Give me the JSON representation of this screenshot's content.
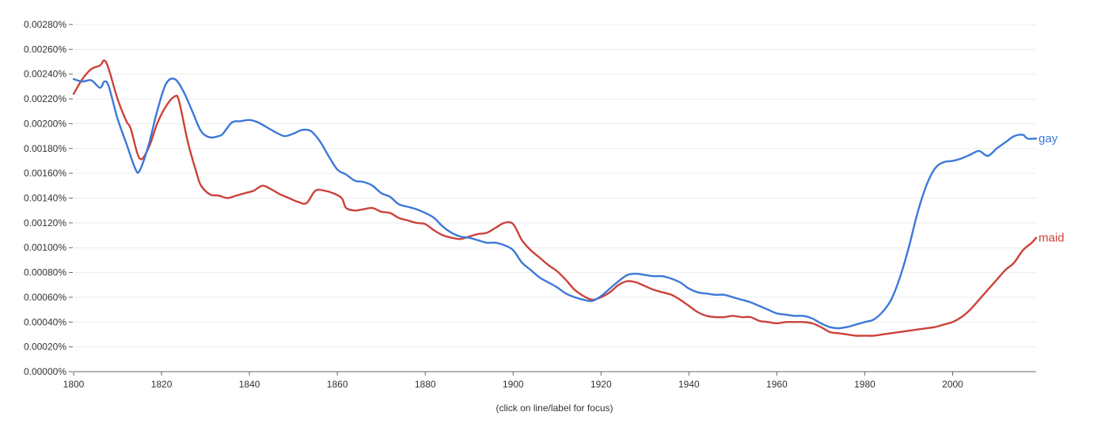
{
  "chart_data": {
    "type": "line",
    "title": "",
    "xlabel": "",
    "ylabel": "",
    "xlim": [
      1800,
      2019
    ],
    "ylim": [
      0,
      0.0028
    ],
    "grid": true,
    "footnote": "(click on line/label for focus)",
    "y_ticks": [
      {
        "value": 0.0,
        "label": "0.00000%"
      },
      {
        "value": 0.0002,
        "label": "0.00020%"
      },
      {
        "value": 0.0004,
        "label": "0.00040%"
      },
      {
        "value": 0.0006,
        "label": "0.00060%"
      },
      {
        "value": 0.0008,
        "label": "0.00080%"
      },
      {
        "value": 0.001,
        "label": "0.00100%"
      },
      {
        "value": 0.0012,
        "label": "0.00120%"
      },
      {
        "value": 0.0014,
        "label": "0.00140%"
      },
      {
        "value": 0.0016,
        "label": "0.00160%"
      },
      {
        "value": 0.0018,
        "label": "0.00180%"
      },
      {
        "value": 0.002,
        "label": "0.00200%"
      },
      {
        "value": 0.0022,
        "label": "0.00220%"
      },
      {
        "value": 0.0024,
        "label": "0.00240%"
      },
      {
        "value": 0.0026,
        "label": "0.00260%"
      },
      {
        "value": 0.0028,
        "label": "0.00280%"
      }
    ],
    "x_ticks": [
      {
        "value": 1800,
        "label": "1800"
      },
      {
        "value": 1820,
        "label": "1820"
      },
      {
        "value": 1840,
        "label": "1840"
      },
      {
        "value": 1860,
        "label": "1860"
      },
      {
        "value": 1880,
        "label": "1880"
      },
      {
        "value": 1900,
        "label": "1900"
      },
      {
        "value": 1920,
        "label": "1920"
      },
      {
        "value": 1940,
        "label": "1940"
      },
      {
        "value": 1960,
        "label": "1960"
      },
      {
        "value": 1980,
        "label": "1980"
      },
      {
        "value": 2000,
        "label": "2000"
      }
    ],
    "series": [
      {
        "name": "gay",
        "color": "#3c78d8",
        "points": [
          [
            1800,
            0.00236
          ],
          [
            1802,
            0.00234
          ],
          [
            1804,
            0.00235
          ],
          [
            1806,
            0.00229
          ],
          [
            1807,
            0.00234
          ],
          [
            1808,
            0.0023
          ],
          [
            1810,
            0.00204
          ],
          [
            1812,
            0.00184
          ],
          [
            1814,
            0.00164
          ],
          [
            1815,
            0.00162
          ],
          [
            1817,
            0.00182
          ],
          [
            1819,
            0.0021
          ],
          [
            1821,
            0.00232
          ],
          [
            1823,
            0.00236
          ],
          [
            1825,
            0.00226
          ],
          [
            1827,
            0.0021
          ],
          [
            1829,
            0.00194
          ],
          [
            1831,
            0.00189
          ],
          [
            1833,
            0.0019
          ],
          [
            1834,
            0.00192
          ],
          [
            1836,
            0.00201
          ],
          [
            1838,
            0.00202
          ],
          [
            1840,
            0.00203
          ],
          [
            1842,
            0.00201
          ],
          [
            1844,
            0.00197
          ],
          [
            1846,
            0.00193
          ],
          [
            1848,
            0.0019
          ],
          [
            1850,
            0.00192
          ],
          [
            1852,
            0.00195
          ],
          [
            1854,
            0.00194
          ],
          [
            1856,
            0.00186
          ],
          [
            1858,
            0.00174
          ],
          [
            1860,
            0.00163
          ],
          [
            1862,
            0.00159
          ],
          [
            1864,
            0.00154
          ],
          [
            1866,
            0.00153
          ],
          [
            1868,
            0.0015
          ],
          [
            1870,
            0.00144
          ],
          [
            1872,
            0.00141
          ],
          [
            1874,
            0.00135
          ],
          [
            1876,
            0.00133
          ],
          [
            1878,
            0.00131
          ],
          [
            1880,
            0.00128
          ],
          [
            1882,
            0.00124
          ],
          [
            1884,
            0.00117
          ],
          [
            1886,
            0.00112
          ],
          [
            1888,
            0.00109
          ],
          [
            1890,
            0.00108
          ],
          [
            1892,
            0.00106
          ],
          [
            1894,
            0.00104
          ],
          [
            1896,
            0.00104
          ],
          [
            1898,
            0.00102
          ],
          [
            1900,
            0.00098
          ],
          [
            1902,
            0.00088
          ],
          [
            1904,
            0.00082
          ],
          [
            1906,
            0.00076
          ],
          [
            1908,
            0.00072
          ],
          [
            1910,
            0.00068
          ],
          [
            1912,
            0.00063
          ],
          [
            1914,
            0.0006
          ],
          [
            1916,
            0.00058
          ],
          [
            1918,
            0.00057
          ],
          [
            1920,
            0.00061
          ],
          [
            1922,
            0.00067
          ],
          [
            1924,
            0.00073
          ],
          [
            1926,
            0.00078
          ],
          [
            1928,
            0.00079
          ],
          [
            1930,
            0.00078
          ],
          [
            1932,
            0.00077
          ],
          [
            1934,
            0.00077
          ],
          [
            1936,
            0.00075
          ],
          [
            1938,
            0.00072
          ],
          [
            1940,
            0.00067
          ],
          [
            1942,
            0.00064
          ],
          [
            1944,
            0.00063
          ],
          [
            1946,
            0.00062
          ],
          [
            1948,
            0.00062
          ],
          [
            1950,
            0.0006
          ],
          [
            1952,
            0.00058
          ],
          [
            1954,
            0.00056
          ],
          [
            1956,
            0.00053
          ],
          [
            1958,
            0.0005
          ],
          [
            1960,
            0.00047
          ],
          [
            1962,
            0.00046
          ],
          [
            1964,
            0.00045
          ],
          [
            1966,
            0.00045
          ],
          [
            1968,
            0.00043
          ],
          [
            1970,
            0.00039
          ],
          [
            1972,
            0.00036
          ],
          [
            1974,
            0.00035
          ],
          [
            1976,
            0.00036
          ],
          [
            1978,
            0.00038
          ],
          [
            1980,
            0.0004
          ],
          [
            1982,
            0.00042
          ],
          [
            1984,
            0.00048
          ],
          [
            1986,
            0.00058
          ],
          [
            1988,
            0.00076
          ],
          [
            1990,
            0.001
          ],
          [
            1992,
            0.00128
          ],
          [
            1994,
            0.0015
          ],
          [
            1996,
            0.00164
          ],
          [
            1998,
            0.00169
          ],
          [
            2000,
            0.0017
          ],
          [
            2002,
            0.00172
          ],
          [
            2004,
            0.00175
          ],
          [
            2006,
            0.00178
          ],
          [
            2008,
            0.00174
          ],
          [
            2010,
            0.0018
          ],
          [
            2012,
            0.00185
          ],
          [
            2014,
            0.0019
          ],
          [
            2016,
            0.00191
          ],
          [
            2017,
            0.00188
          ],
          [
            2019,
            0.00188
          ]
        ]
      },
      {
        "name": "maid",
        "color": "#cc4139",
        "points": [
          [
            1800,
            0.00224
          ],
          [
            1802,
            0.00236
          ],
          [
            1804,
            0.00244
          ],
          [
            1806,
            0.00247
          ],
          [
            1807,
            0.00251
          ],
          [
            1808,
            0.00244
          ],
          [
            1810,
            0.0022
          ],
          [
            1812,
            0.00202
          ],
          [
            1813,
            0.00196
          ],
          [
            1815,
            0.00172
          ],
          [
            1817,
            0.0018
          ],
          [
            1819,
            0.002
          ],
          [
            1821,
            0.00214
          ],
          [
            1823,
            0.00222
          ],
          [
            1824,
            0.00218
          ],
          [
            1826,
            0.00185
          ],
          [
            1828,
            0.0016
          ],
          [
            1829,
            0.0015
          ],
          [
            1831,
            0.00143
          ],
          [
            1833,
            0.00142
          ],
          [
            1835,
            0.0014
          ],
          [
            1837,
            0.00142
          ],
          [
            1839,
            0.00144
          ],
          [
            1841,
            0.00146
          ],
          [
            1843,
            0.0015
          ],
          [
            1845,
            0.00147
          ],
          [
            1847,
            0.00143
          ],
          [
            1849,
            0.0014
          ],
          [
            1851,
            0.00137
          ],
          [
            1853,
            0.00136
          ],
          [
            1855,
            0.00146
          ],
          [
            1857,
            0.00146
          ],
          [
            1859,
            0.00144
          ],
          [
            1861,
            0.0014
          ],
          [
            1862,
            0.00132
          ],
          [
            1864,
            0.0013
          ],
          [
            1866,
            0.00131
          ],
          [
            1868,
            0.00132
          ],
          [
            1870,
            0.00129
          ],
          [
            1872,
            0.00128
          ],
          [
            1874,
            0.00124
          ],
          [
            1876,
            0.00122
          ],
          [
            1878,
            0.0012
          ],
          [
            1880,
            0.00119
          ],
          [
            1882,
            0.00114
          ],
          [
            1884,
            0.0011
          ],
          [
            1886,
            0.00108
          ],
          [
            1888,
            0.00107
          ],
          [
            1890,
            0.00109
          ],
          [
            1892,
            0.00111
          ],
          [
            1894,
            0.00112
          ],
          [
            1896,
            0.00116
          ],
          [
            1898,
            0.0012
          ],
          [
            1900,
            0.00119
          ],
          [
            1902,
            0.00106
          ],
          [
            1904,
            0.00098
          ],
          [
            1906,
            0.00092
          ],
          [
            1908,
            0.00086
          ],
          [
            1910,
            0.00081
          ],
          [
            1912,
            0.00074
          ],
          [
            1914,
            0.00066
          ],
          [
            1916,
            0.00061
          ],
          [
            1918,
            0.00058
          ],
          [
            1920,
            0.0006
          ],
          [
            1922,
            0.00064
          ],
          [
            1924,
            0.0007
          ],
          [
            1926,
            0.00073
          ],
          [
            1928,
            0.00072
          ],
          [
            1930,
            0.00069
          ],
          [
            1932,
            0.00066
          ],
          [
            1934,
            0.00064
          ],
          [
            1936,
            0.00062
          ],
          [
            1938,
            0.00058
          ],
          [
            1940,
            0.00053
          ],
          [
            1942,
            0.00048
          ],
          [
            1944,
            0.00045
          ],
          [
            1946,
            0.00044
          ],
          [
            1948,
            0.00044
          ],
          [
            1950,
            0.00045
          ],
          [
            1952,
            0.00044
          ],
          [
            1954,
            0.00044
          ],
          [
            1956,
            0.00041
          ],
          [
            1958,
            0.0004
          ],
          [
            1960,
            0.00039
          ],
          [
            1962,
            0.0004
          ],
          [
            1964,
            0.0004
          ],
          [
            1966,
            0.0004
          ],
          [
            1968,
            0.00039
          ],
          [
            1970,
            0.00036
          ],
          [
            1972,
            0.00032
          ],
          [
            1974,
            0.00031
          ],
          [
            1976,
            0.0003
          ],
          [
            1978,
            0.00029
          ],
          [
            1980,
            0.00029
          ],
          [
            1982,
            0.00029
          ],
          [
            1984,
            0.0003
          ],
          [
            1986,
            0.00031
          ],
          [
            1988,
            0.00032
          ],
          [
            1990,
            0.00033
          ],
          [
            1992,
            0.00034
          ],
          [
            1994,
            0.00035
          ],
          [
            1996,
            0.00036
          ],
          [
            1998,
            0.00038
          ],
          [
            2000,
            0.0004
          ],
          [
            2002,
            0.00044
          ],
          [
            2004,
            0.0005
          ],
          [
            2006,
            0.00058
          ],
          [
            2008,
            0.00066
          ],
          [
            2010,
            0.00074
          ],
          [
            2012,
            0.00082
          ],
          [
            2014,
            0.00088
          ],
          [
            2016,
            0.00098
          ],
          [
            2018,
            0.00104
          ],
          [
            2019,
            0.00108
          ]
        ]
      }
    ]
  }
}
